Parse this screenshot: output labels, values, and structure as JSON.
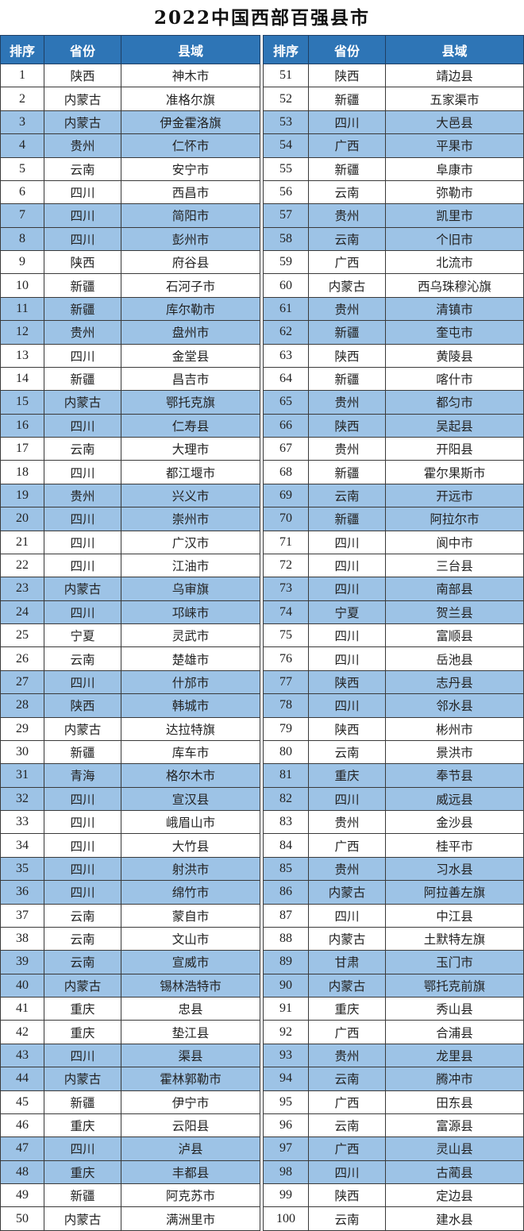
{
  "title": "2022中国西部百强县市",
  "colors": {
    "header_bg": "#2e75b6",
    "stripe_bg": "#9dc3e6",
    "header_text": "#ffffff"
  },
  "headers": [
    "排序",
    "省份",
    "县域"
  ],
  "left_rows": [
    [
      "1",
      "陕西",
      "神木市"
    ],
    [
      "2",
      "内蒙古",
      "准格尔旗"
    ],
    [
      "3",
      "内蒙古",
      "伊金霍洛旗"
    ],
    [
      "4",
      "贵州",
      "仁怀市"
    ],
    [
      "5",
      "云南",
      "安宁市"
    ],
    [
      "6",
      "四川",
      "西昌市"
    ],
    [
      "7",
      "四川",
      "简阳市"
    ],
    [
      "8",
      "四川",
      "彭州市"
    ],
    [
      "9",
      "陕西",
      "府谷县"
    ],
    [
      "10",
      "新疆",
      "石河子市"
    ],
    [
      "11",
      "新疆",
      "库尔勒市"
    ],
    [
      "12",
      "贵州",
      "盘州市"
    ],
    [
      "13",
      "四川",
      "金堂县"
    ],
    [
      "14",
      "新疆",
      "昌吉市"
    ],
    [
      "15",
      "内蒙古",
      "鄂托克旗"
    ],
    [
      "16",
      "四川",
      "仁寿县"
    ],
    [
      "17",
      "云南",
      "大理市"
    ],
    [
      "18",
      "四川",
      "都江堰市"
    ],
    [
      "19",
      "贵州",
      "兴义市"
    ],
    [
      "20",
      "四川",
      "崇州市"
    ],
    [
      "21",
      "四川",
      "广汉市"
    ],
    [
      "22",
      "四川",
      "江油市"
    ],
    [
      "23",
      "内蒙古",
      "乌审旗"
    ],
    [
      "24",
      "四川",
      "邛崃市"
    ],
    [
      "25",
      "宁夏",
      "灵武市"
    ],
    [
      "26",
      "云南",
      "楚雄市"
    ],
    [
      "27",
      "四川",
      "什邡市"
    ],
    [
      "28",
      "陕西",
      "韩城市"
    ],
    [
      "29",
      "内蒙古",
      "达拉特旗"
    ],
    [
      "30",
      "新疆",
      "库车市"
    ],
    [
      "31",
      "青海",
      "格尔木市"
    ],
    [
      "32",
      "四川",
      "宣汉县"
    ],
    [
      "33",
      "四川",
      "峨眉山市"
    ],
    [
      "34",
      "四川",
      "大竹县"
    ],
    [
      "35",
      "四川",
      "射洪市"
    ],
    [
      "36",
      "四川",
      "绵竹市"
    ],
    [
      "37",
      "云南",
      "蒙自市"
    ],
    [
      "38",
      "云南",
      "文山市"
    ],
    [
      "39",
      "云南",
      "宣威市"
    ],
    [
      "40",
      "内蒙古",
      "锡林浩特市"
    ],
    [
      "41",
      "重庆",
      "忠县"
    ],
    [
      "42",
      "重庆",
      "垫江县"
    ],
    [
      "43",
      "四川",
      "渠县"
    ],
    [
      "44",
      "内蒙古",
      "霍林郭勒市"
    ],
    [
      "45",
      "新疆",
      "伊宁市"
    ],
    [
      "46",
      "重庆",
      "云阳县"
    ],
    [
      "47",
      "四川",
      "泸县"
    ],
    [
      "48",
      "重庆",
      "丰都县"
    ],
    [
      "49",
      "新疆",
      "阿克苏市"
    ],
    [
      "50",
      "内蒙古",
      "满洲里市"
    ]
  ],
  "right_rows": [
    [
      "51",
      "陕西",
      "靖边县"
    ],
    [
      "52",
      "新疆",
      "五家渠市"
    ],
    [
      "53",
      "四川",
      "大邑县"
    ],
    [
      "54",
      "广西",
      "平果市"
    ],
    [
      "55",
      "新疆",
      "阜康市"
    ],
    [
      "56",
      "云南",
      "弥勒市"
    ],
    [
      "57",
      "贵州",
      "凯里市"
    ],
    [
      "58",
      "云南",
      "个旧市"
    ],
    [
      "59",
      "广西",
      "北流市"
    ],
    [
      "60",
      "内蒙古",
      "西乌珠穆沁旗"
    ],
    [
      "61",
      "贵州",
      "清镇市"
    ],
    [
      "62",
      "新疆",
      "奎屯市"
    ],
    [
      "63",
      "陕西",
      "黄陵县"
    ],
    [
      "64",
      "新疆",
      "喀什市"
    ],
    [
      "65",
      "贵州",
      "都匀市"
    ],
    [
      "66",
      "陕西",
      "吴起县"
    ],
    [
      "67",
      "贵州",
      "开阳县"
    ],
    [
      "68",
      "新疆",
      "霍尔果斯市"
    ],
    [
      "69",
      "云南",
      "开远市"
    ],
    [
      "70",
      "新疆",
      "阿拉尔市"
    ],
    [
      "71",
      "四川",
      "阆中市"
    ],
    [
      "72",
      "四川",
      "三台县"
    ],
    [
      "73",
      "四川",
      "南部县"
    ],
    [
      "74",
      "宁夏",
      "贺兰县"
    ],
    [
      "75",
      "四川",
      "富顺县"
    ],
    [
      "76",
      "四川",
      "岳池县"
    ],
    [
      "77",
      "陕西",
      "志丹县"
    ],
    [
      "78",
      "四川",
      "邻水县"
    ],
    [
      "79",
      "陕西",
      "彬州市"
    ],
    [
      "80",
      "云南",
      "景洪市"
    ],
    [
      "81",
      "重庆",
      "奉节县"
    ],
    [
      "82",
      "四川",
      "威远县"
    ],
    [
      "83",
      "贵州",
      "金沙县"
    ],
    [
      "84",
      "广西",
      "桂平市"
    ],
    [
      "85",
      "贵州",
      "习水县"
    ],
    [
      "86",
      "内蒙古",
      "阿拉善左旗"
    ],
    [
      "87",
      "四川",
      "中江县"
    ],
    [
      "88",
      "内蒙古",
      "土默特左旗"
    ],
    [
      "89",
      "甘肃",
      "玉门市"
    ],
    [
      "90",
      "内蒙古",
      "鄂托克前旗"
    ],
    [
      "91",
      "重庆",
      "秀山县"
    ],
    [
      "92",
      "广西",
      "合浦县"
    ],
    [
      "93",
      "贵州",
      "龙里县"
    ],
    [
      "94",
      "云南",
      "腾冲市"
    ],
    [
      "95",
      "广西",
      "田东县"
    ],
    [
      "96",
      "云南",
      "富源县"
    ],
    [
      "97",
      "广西",
      "灵山县"
    ],
    [
      "98",
      "四川",
      "古蔺县"
    ],
    [
      "99",
      "陕西",
      "定边县"
    ],
    [
      "100",
      "云南",
      "建水县"
    ]
  ]
}
